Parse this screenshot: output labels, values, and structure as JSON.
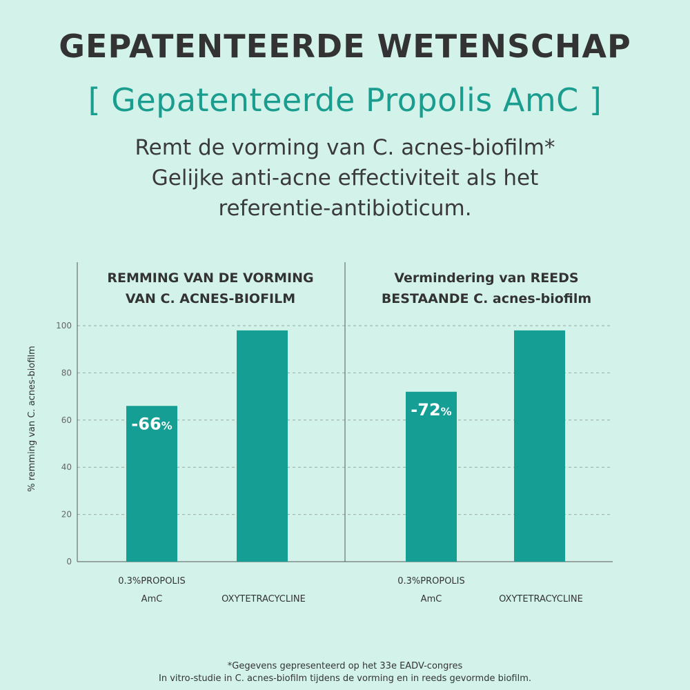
{
  "header": {
    "title": "GEPATENTEERDE WETENSCHAP",
    "subtitle": "[ Gepatenteerde Propolis AmC ]",
    "claims": [
      "Remt de vorming van C. acnes-biofilm*",
      "Gelijke anti-acne effectiviteit als het",
      "referentie-antibioticum."
    ]
  },
  "colors": {
    "background": "#d3f3ea",
    "bar": "#159e93",
    "accent": "#1a9c8e",
    "text": "#333333"
  },
  "chart_data": [
    {
      "type": "bar",
      "title": [
        "REMMING VAN DE VORMING",
        "VAN C. ACNES-BIOFILM"
      ],
      "ylabel": "% remming van C. acnes-biofilm",
      "ylim": [
        0,
        100
      ],
      "yticks": [
        "0",
        "20",
        "40",
        "60",
        "80",
        "100"
      ],
      "grid": true,
      "categories": [
        [
          "0.3%PROPOLIS",
          "AmC"
        ],
        [
          "OXYTETRACYCLINE"
        ]
      ],
      "values": [
        66,
        98
      ],
      "bar_labels": [
        {
          "value": "-66",
          "unit": "%"
        },
        null
      ]
    },
    {
      "type": "bar",
      "title": [
        "Vermindering van REEDS",
        "BESTAANDE C. acnes-biofilm"
      ],
      "ylim": [
        0,
        100
      ],
      "grid": true,
      "categories": [
        [
          "0.3%PROPOLIS",
          "AmC"
        ],
        [
          "OXYTETRACYCLINE"
        ]
      ],
      "values": [
        72,
        98
      ],
      "bar_labels": [
        {
          "value": "-72",
          "unit": "%"
        },
        null
      ]
    }
  ],
  "footnote": [
    "*Gegevens gepresenteerd op het 33e EADV-congres",
    "In vitro-studie in C. acnes-biofilm tijdens de vorming en in reeds gevormde biofilm."
  ]
}
